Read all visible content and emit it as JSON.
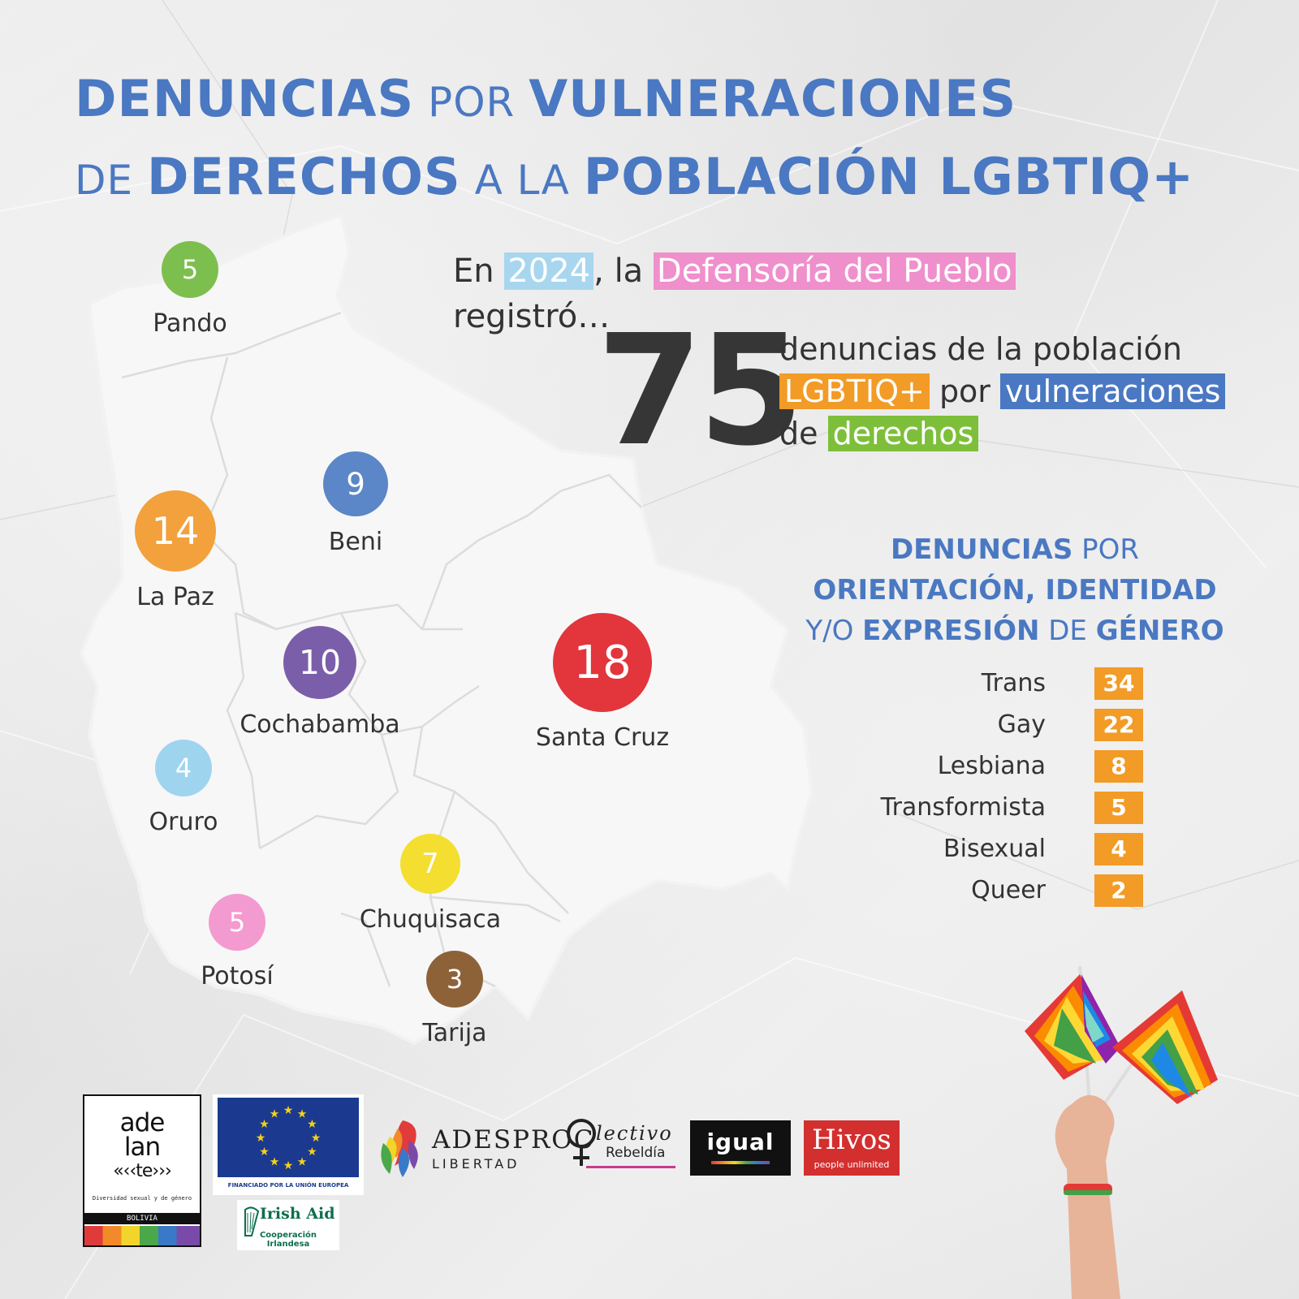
{
  "title": {
    "line1": [
      {
        "text": "DENUNCIAS",
        "style": "b"
      },
      {
        "text": " POR ",
        "style": "l"
      },
      {
        "text": "VULNERACIONES",
        "style": "b"
      }
    ],
    "line2": [
      {
        "text": "DE ",
        "style": "l"
      },
      {
        "text": "DERECHOS",
        "style": "b"
      },
      {
        "text": " A LA ",
        "style": "l"
      },
      {
        "text": "POBLACIÓN LGBTIQ+",
        "style": "b"
      }
    ]
  },
  "departments": [
    {
      "name": "Pando",
      "value": "5",
      "color": "#7dbf4e"
    },
    {
      "name": "Beni",
      "value": "9",
      "color": "#5b86c7"
    },
    {
      "name": "La Paz",
      "value": "14",
      "color": "#f2a13c"
    },
    {
      "name": "Cochabamba",
      "value": "10",
      "color": "#7b5ea9"
    },
    {
      "name": "Santa Cruz",
      "value": "18",
      "color": "#e2353c"
    },
    {
      "name": "Oruro",
      "value": "4",
      "color": "#9fd4ef"
    },
    {
      "name": "Chuquisaca",
      "value": "7",
      "color": "#f4de2f"
    },
    {
      "name": "Potosí",
      "value": "5",
      "color": "#f39ad0"
    },
    {
      "name": "Tarija",
      "value": "3",
      "color": "#8d6239"
    }
  ],
  "intro": {
    "en": "En",
    "year": "2024",
    "la": ", la",
    "institution": "Defensoría del Pueblo",
    "registro": "registró…",
    "year_color": "#a8d6ef",
    "institution_color": "#ef8fcc"
  },
  "total": {
    "number": "75",
    "line1": "denuncias de la población",
    "tag_lgbt": "LGBTIQ+",
    "por": " por ",
    "tag_vuln": "vulneraciones",
    "de": "de",
    "tag_derechos": "derechos",
    "tag_lgbt_color": "#f29b26",
    "tag_vuln_color": "#4a78c2",
    "tag_derechos_color": "#7dbf3a"
  },
  "subtitle": {
    "l1_b": "DENUNCIAS",
    "l1_l": " POR",
    "l2_b": "ORIENTACIÓN, IDENTIDAD",
    "l3_l1": "Y/O ",
    "l3_b1": "EXPRESIÓN",
    "l3_l2": " DE ",
    "l3_b2": "GÉNERO"
  },
  "categories": [
    {
      "label": "Trans",
      "value": "34"
    },
    {
      "label": "Gay",
      "value": "22"
    },
    {
      "label": "Lesbiana",
      "value": "8"
    },
    {
      "label": "Transformista",
      "value": "5"
    },
    {
      "label": "Bisexual",
      "value": "4"
    },
    {
      "label": "Queer",
      "value": "2"
    }
  ],
  "logos": {
    "adelante": {
      "l1": "ade",
      "l2": "lan",
      "l3": "«‹‹te›››",
      "tagline": "Diversidad sexual y de género",
      "country": "BOLIVIA"
    },
    "eu": {
      "caption": "FINANCIADO POR LA UNIÓN EUROPEA"
    },
    "irish_aid": {
      "name": "Irish Aid",
      "sub": "Cooperación Irlandesa"
    },
    "adesproc": {
      "name": "ADESPROC",
      "sub": "LIBERTAD"
    },
    "colectivo": {
      "name": "lectivo",
      "sub": "Rebeldía"
    },
    "igual": {
      "name": "igual"
    },
    "hivos": {
      "name": "Hivos",
      "sub": "people unlimited"
    }
  }
}
